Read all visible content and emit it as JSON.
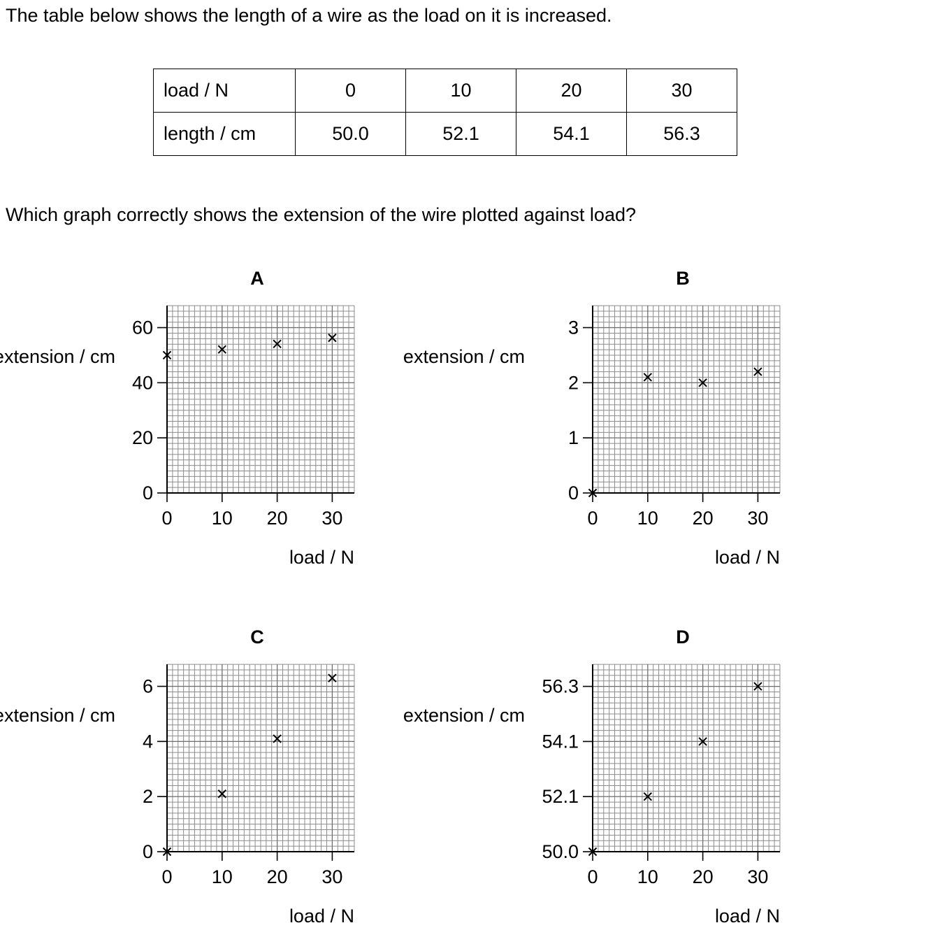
{
  "intro_text": "The table below shows the length of a wire as the load on it is increased.",
  "question_text": "Which graph correctly shows the extension of the wire plotted against load?",
  "table": {
    "rows": [
      {
        "label": "load / N",
        "values": [
          "0",
          "10",
          "20",
          "30"
        ]
      },
      {
        "label": "length / cm",
        "values": [
          "50.0",
          "52.1",
          "54.1",
          "56.3"
        ]
      }
    ]
  },
  "chart_data": [
    {
      "type": "scatter",
      "title": "A",
      "xlabel": "load / N",
      "ylabel": "extension / cm",
      "x": [
        0,
        10,
        20,
        30
      ],
      "y": [
        50.0,
        52.1,
        54.1,
        56.3
      ],
      "xlim": [
        0,
        34
      ],
      "ylim": [
        0,
        68
      ],
      "xticks": [
        0,
        10,
        20,
        30
      ],
      "xtick_labels": [
        "0",
        "10",
        "20",
        "30"
      ],
      "yticks": [
        0,
        20,
        40,
        60
      ],
      "ytick_labels": [
        "0",
        "20",
        "40",
        "60"
      ],
      "grid": true,
      "marker": "x"
    },
    {
      "type": "scatter",
      "title": "B",
      "xlabel": "load / N",
      "ylabel": "extension / cm",
      "x": [
        0,
        10,
        20,
        30
      ],
      "y": [
        0,
        2.1,
        2.0,
        2.2
      ],
      "xlim": [
        0,
        34
      ],
      "ylim": [
        0,
        3.4
      ],
      "xticks": [
        0,
        10,
        20,
        30
      ],
      "xtick_labels": [
        "0",
        "10",
        "20",
        "30"
      ],
      "yticks": [
        0,
        1,
        2,
        3
      ],
      "ytick_labels": [
        "0",
        "1",
        "2",
        "3"
      ],
      "grid": true,
      "marker": "x"
    },
    {
      "type": "scatter",
      "title": "C",
      "xlabel": "load / N",
      "ylabel": "extension / cm",
      "x": [
        0,
        10,
        20,
        30
      ],
      "y": [
        0,
        2.1,
        4.1,
        6.3
      ],
      "xlim": [
        0,
        34
      ],
      "ylim": [
        0,
        6.8
      ],
      "xticks": [
        0,
        10,
        20,
        30
      ],
      "xtick_labels": [
        "0",
        "10",
        "20",
        "30"
      ],
      "yticks": [
        0,
        2,
        4,
        6
      ],
      "ytick_labels": [
        "0",
        "2",
        "4",
        "6"
      ],
      "grid": true,
      "marker": "x"
    },
    {
      "type": "scatter",
      "title": "D",
      "xlabel": "load / N",
      "ylabel": "extension / cm",
      "x": [
        0,
        10,
        20,
        30
      ],
      "y": [
        50.0,
        52.1,
        54.1,
        56.3
      ],
      "category_y_axis": true,
      "xlim": [
        0,
        34
      ],
      "xticks": [
        0,
        10,
        20,
        30
      ],
      "xtick_labels": [
        "0",
        "10",
        "20",
        "30"
      ],
      "yticks": [
        50.0,
        52.1,
        54.1,
        56.3
      ],
      "ytick_labels": [
        "50.0",
        "52.1",
        "54.1",
        "56.3"
      ],
      "grid": true,
      "marker": "x"
    }
  ]
}
